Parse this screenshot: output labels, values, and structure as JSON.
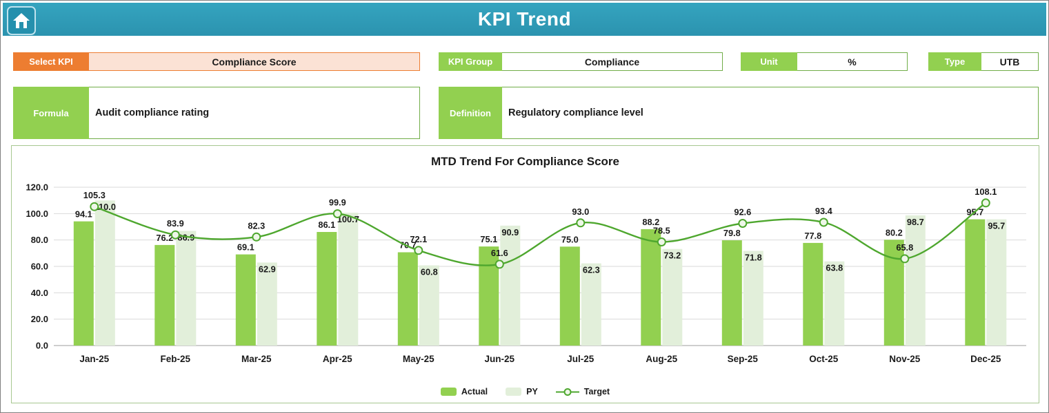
{
  "header": {
    "title": "KPI Trend"
  },
  "filters": {
    "select_kpi": {
      "label": "Select KPI",
      "value": "Compliance Score"
    },
    "kpi_group": {
      "label": "KPI Group",
      "value": "Compliance"
    },
    "unit": {
      "label": "Unit",
      "value": "%"
    },
    "type": {
      "label": "Type",
      "value": "UTB"
    },
    "formula": {
      "label": "Formula",
      "value": "Audit compliance rating"
    },
    "definition": {
      "label": "Definition",
      "value": "Regulatory compliance level"
    }
  },
  "chart_data": {
    "type": "bar",
    "title": "MTD Trend For Compliance Score",
    "categories": [
      "Jan-25",
      "Feb-25",
      "Mar-25",
      "Apr-25",
      "May-25",
      "Jun-25",
      "Jul-25",
      "Aug-25",
      "Sep-25",
      "Oct-25",
      "Nov-25",
      "Dec-25"
    ],
    "series": [
      {
        "name": "Actual",
        "type": "bar",
        "color": "#92d050",
        "values": [
          94.1,
          76.2,
          69.1,
          86.1,
          70.7,
          75.1,
          75.0,
          88.2,
          79.8,
          77.8,
          80.2,
          95.7
        ]
      },
      {
        "name": "PY",
        "type": "bar",
        "color": "#e2efda",
        "values": [
          110.0,
          86.9,
          62.9,
          100.7,
          60.8,
          90.9,
          62.3,
          73.2,
          71.8,
          63.8,
          98.7,
          95.7
        ]
      },
      {
        "name": "Target",
        "type": "line",
        "color": "#4ea72e",
        "values": [
          105.3,
          83.9,
          82.3,
          99.9,
          72.1,
          61.6,
          93.0,
          78.5,
          92.6,
          93.4,
          65.8,
          108.1
        ]
      }
    ],
    "ylim": [
      0,
      120
    ],
    "ytick_step": 20,
    "grid": true,
    "legend_position": "bottom"
  },
  "colors": {
    "header_teal": "#2d9bb5",
    "accent_green": "#92d050",
    "py_light_green": "#e2efda",
    "line_green": "#4ea72e",
    "accent_orange": "#ed7d31",
    "peach_fill": "#fbe2d5",
    "border_green": "#70ad47"
  }
}
